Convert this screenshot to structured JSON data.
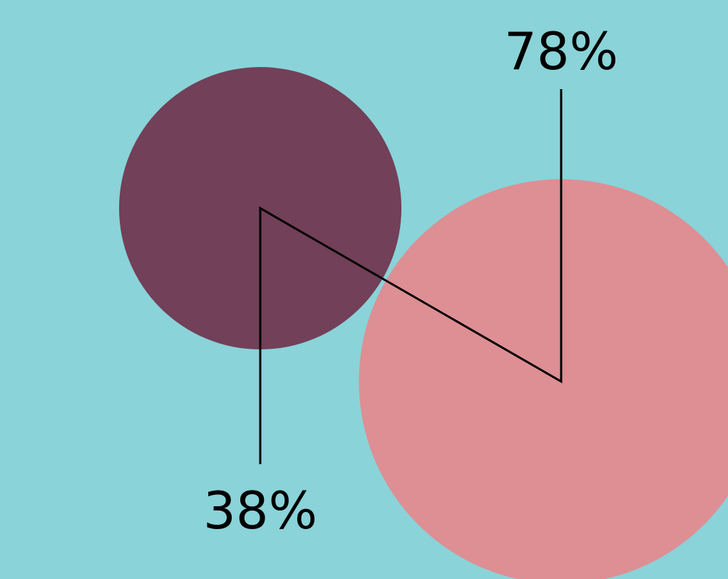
{
  "colors": {
    "background": "#8AD3D9",
    "line": "#000000",
    "label": "#000000"
  },
  "chart_data": {
    "type": "bubble",
    "series": [
      {
        "value": 38,
        "label": "38%",
        "color": "#724058"
      },
      {
        "value": 78,
        "label": "78%",
        "color": "#DD8F94"
      }
    ]
  }
}
